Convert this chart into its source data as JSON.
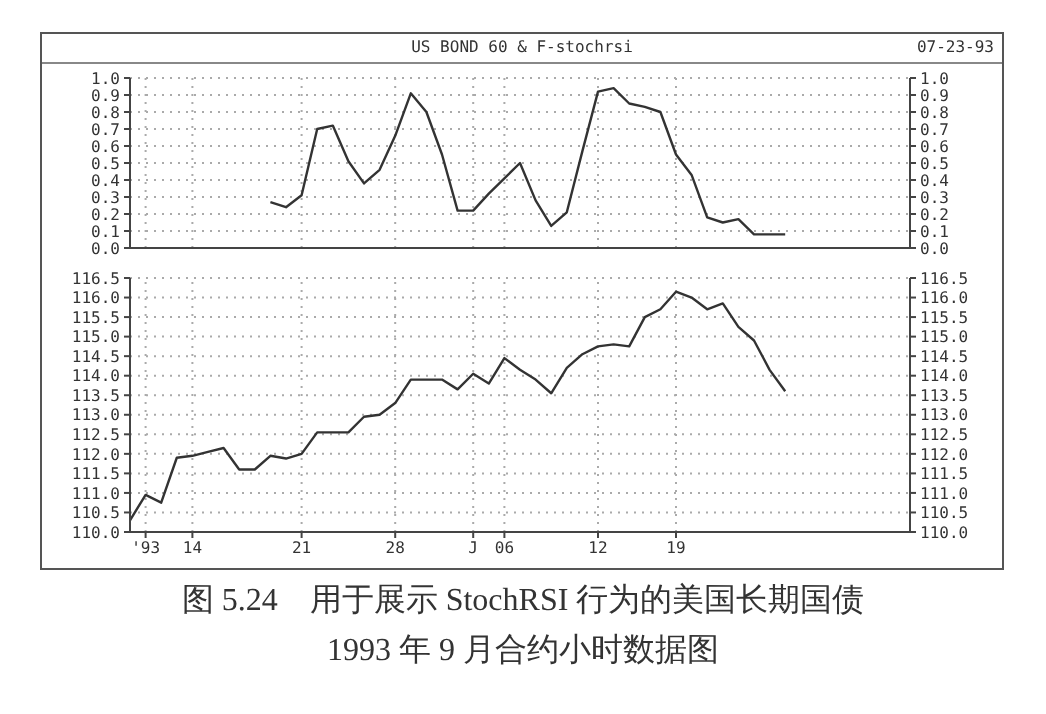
{
  "chart_data": [
    {
      "type": "line",
      "title": "US BOND 60 & F-stochrsi",
      "subtitle": "07-23-93",
      "categories": [
        null,
        null,
        null,
        null,
        null,
        null,
        null,
        null,
        null,
        null,
        null,
        null,
        null,
        null,
        null,
        null,
        null,
        null,
        null,
        null,
        null,
        null,
        null,
        null,
        null,
        null,
        null,
        null,
        null,
        null,
        null,
        null,
        null,
        null,
        null,
        null,
        null,
        null,
        null,
        null,
        null,
        null,
        null,
        null,
        null,
        null,
        null,
        null,
        null,
        null,
        null
      ],
      "series": [
        {
          "color": "#333333",
          "values": [
            null,
            null,
            null,
            null,
            null,
            null,
            null,
            null,
            null,
            0.27,
            0.24,
            0.31,
            0.7,
            0.72,
            0.51,
            0.38,
            0.46,
            0.66,
            0.91,
            0.8,
            0.55,
            0.22,
            0.22,
            0.32,
            0.41,
            0.5,
            0.28,
            0.13,
            0.21,
            0.57,
            0.92,
            0.94,
            0.85,
            0.83,
            0.8,
            0.55,
            0.43,
            0.18,
            0.15,
            0.17,
            0.08,
            0.08,
            0.08,
            null,
            null,
            null,
            null,
            null,
            null,
            null,
            null
          ]
        }
      ],
      "ylim": [
        0,
        1
      ],
      "yticks": [
        {
          "value": 0,
          "label": "0.0"
        },
        0.1,
        0.2,
        0.3,
        0.4,
        0.5,
        0.6,
        0.7,
        0.8,
        0.9,
        {
          "value": 1,
          "label": "1.0"
        }
      ],
      "y2lim": [
        0,
        1
      ],
      "y2ticks": [
        {
          "value": 0,
          "label": "0.0"
        },
        0.1,
        0.2,
        0.3,
        0.4,
        0.5,
        0.6,
        0.7,
        0.8,
        0.9,
        {
          "value": 1,
          "label": "1.0"
        }
      ],
      "grid": true,
      "tick_labels": "y",
      "marker": "none",
      "line_style": "solid"
    },
    {
      "type": "line",
      "annotations": [
        "图 5.24　用于展示 StochRSI 行为的美国长期国债",
        "1993 年 9 月合约小时数据图"
      ],
      "categories": [
        null,
        "'93",
        null,
        null,
        "14",
        null,
        null,
        null,
        null,
        null,
        null,
        "21",
        null,
        null,
        null,
        null,
        null,
        "28",
        null,
        null,
        null,
        null,
        "J",
        null,
        "06",
        null,
        null,
        null,
        null,
        null,
        "12",
        null,
        null,
        null,
        null,
        "19",
        null,
        null,
        null,
        null,
        null,
        null,
        null,
        null,
        null,
        null,
        null,
        null,
        null,
        null,
        null
      ],
      "series": [
        {
          "color": "#333333",
          "values": [
            110.3,
            110.95,
            110.75,
            111.9,
            111.95,
            112.05,
            112.15,
            111.6,
            111.6,
            111.95,
            111.88,
            112.0,
            112.55,
            112.55,
            112.55,
            112.95,
            113.0,
            113.3,
            113.9,
            113.9,
            113.9,
            113.65,
            114.05,
            113.8,
            114.45,
            114.15,
            113.9,
            113.55,
            114.2,
            114.55,
            114.75,
            114.8,
            114.75,
            115.5,
            115.7,
            116.15,
            116.0,
            115.7,
            115.85,
            115.25,
            114.9,
            114.15,
            113.6,
            null,
            null,
            null,
            null,
            null,
            null,
            null,
            null
          ]
        }
      ],
      "ylim": [
        110,
        116.5
      ],
      "yticks": [
        {
          "value": 110,
          "label": "110.0"
        },
        110.5,
        {
          "value": 111,
          "label": "111.0"
        },
        111.5,
        {
          "value": 112,
          "label": "112.0"
        },
        112.5,
        {
          "value": 113,
          "label": "113.0"
        },
        113.5,
        {
          "value": 114,
          "label": "114.0"
        },
        114.5,
        {
          "value": 115,
          "label": "115.0"
        },
        115.5,
        {
          "value": 116,
          "label": "116.0"
        },
        116.5
      ],
      "y2lim": [
        110,
        116.5
      ],
      "y2ticks": [
        {
          "value": 110,
          "label": "110.0"
        },
        110.5,
        {
          "value": 111,
          "label": "111.0"
        },
        111.5,
        {
          "value": 112,
          "label": "112.0"
        },
        112.5,
        {
          "value": 113,
          "label": "113.0"
        },
        113.5,
        {
          "value": 114,
          "label": "114.0"
        },
        114.5,
        {
          "value": 115,
          "label": "115.0"
        },
        115.5,
        {
          "value": 116,
          "label": "116.0"
        },
        116.5
      ],
      "grid": true,
      "marker": "none",
      "line_style": "solid"
    }
  ]
}
